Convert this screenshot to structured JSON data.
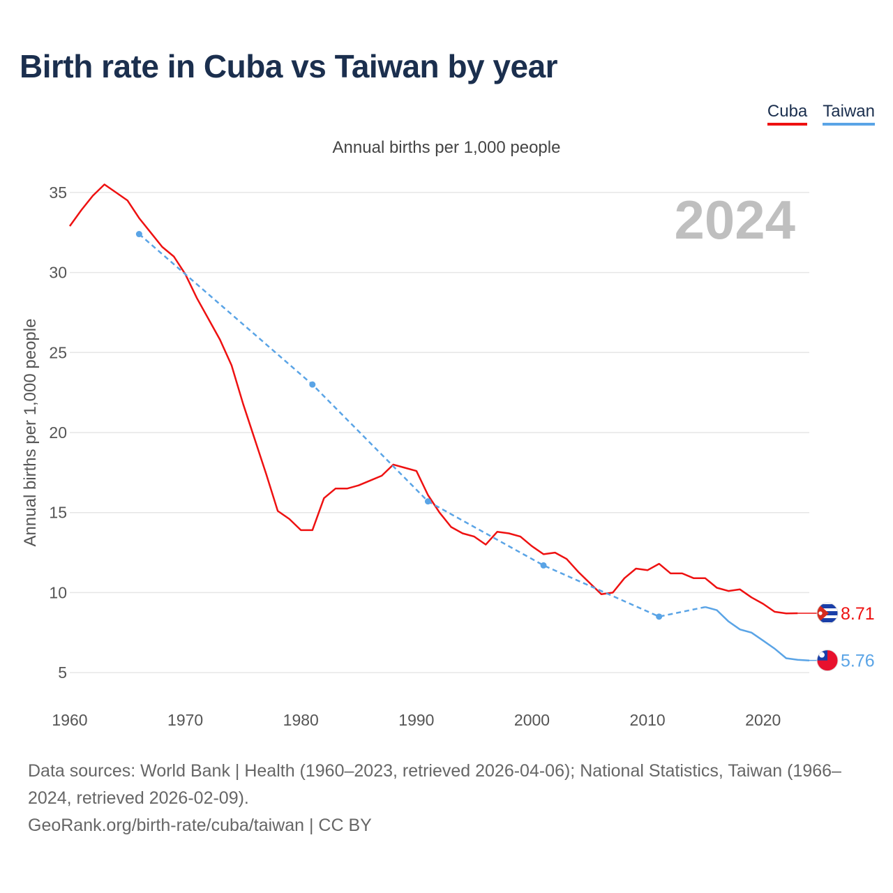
{
  "title": "Birth rate in Cuba vs Taiwan by year",
  "subtitle": "Annual births per 1,000 people",
  "legend": {
    "cuba": "Cuba",
    "taiwan": "Taiwan"
  },
  "footer": {
    "sources": "Data sources: World Bank | Health (1960–2023, retrieved 2026-04-06); National Statistics, Taiwan (1966–2024, retrieved 2026-02-09).",
    "credit": "GeoRank.org/birth-rate/cuba/taiwan | CC BY"
  },
  "chart_data": {
    "type": "line",
    "title": "Birth rate in Cuba vs Taiwan by year",
    "ylabel": "Annual births per 1,000 people",
    "xlabel": "",
    "year_label": "2024",
    "xlim": [
      1960,
      2024
    ],
    "ylim": [
      3,
      37
    ],
    "xticks": [
      1960,
      1970,
      1980,
      1990,
      2000,
      2010,
      2020
    ],
    "yticks": [
      5,
      10,
      15,
      20,
      25,
      30,
      35
    ],
    "grid": true,
    "series": [
      {
        "name": "Cuba",
        "color": "#ee1111",
        "end_label": "8.71",
        "x": [
          1960,
          1961,
          1962,
          1963,
          1964,
          1965,
          1966,
          1967,
          1968,
          1969,
          1970,
          1971,
          1972,
          1973,
          1974,
          1975,
          1976,
          1977,
          1978,
          1979,
          1980,
          1981,
          1982,
          1983,
          1984,
          1985,
          1986,
          1987,
          1988,
          1989,
          1990,
          1991,
          1992,
          1993,
          1994,
          1995,
          1996,
          1997,
          1998,
          1999,
          2000,
          2001,
          2002,
          2003,
          2004,
          2005,
          2006,
          2007,
          2008,
          2009,
          2010,
          2011,
          2012,
          2013,
          2014,
          2015,
          2016,
          2017,
          2018,
          2019,
          2020,
          2021,
          2022,
          2023
        ],
        "values": [
          32.9,
          33.9,
          34.8,
          35.5,
          35.0,
          34.5,
          33.4,
          32.5,
          31.6,
          31.0,
          29.9,
          28.4,
          27.1,
          25.8,
          24.2,
          21.8,
          19.6,
          17.4,
          15.1,
          14.6,
          13.9,
          13.9,
          15.9,
          16.5,
          16.5,
          16.7,
          17.0,
          17.3,
          18.0,
          17.8,
          17.6,
          16.1,
          15.0,
          14.1,
          13.7,
          13.5,
          13.0,
          13.8,
          13.7,
          13.5,
          12.9,
          12.4,
          12.5,
          12.1,
          11.3,
          10.6,
          9.9,
          10.0,
          10.9,
          11.5,
          11.4,
          11.8,
          11.2,
          11.2,
          10.9,
          10.9,
          10.3,
          10.1,
          10.2,
          9.7,
          9.3,
          8.8,
          8.7,
          8.71
        ]
      },
      {
        "name": "Taiwan",
        "color": "#5aa4e6",
        "end_label": "5.76",
        "x": [
          1966,
          1981,
          1991,
          2001,
          2011,
          2015,
          2016,
          2017,
          2018,
          2019,
          2020,
          2021,
          2022,
          2023,
          2024
        ],
        "values": [
          32.4,
          23.0,
          15.7,
          11.7,
          8.5,
          9.1,
          8.9,
          8.2,
          7.7,
          7.5,
          7.0,
          6.5,
          5.9,
          5.8,
          5.76
        ],
        "dashed_until": 2015
      }
    ]
  }
}
